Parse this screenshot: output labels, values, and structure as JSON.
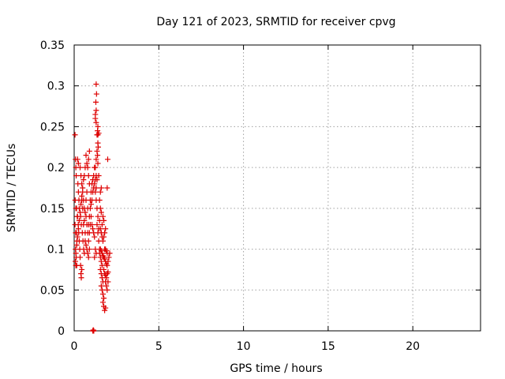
{
  "chart_data": {
    "type": "scatter",
    "title": "Day 121 of 2023, SRMTID for receiver cpvg",
    "xlabel": "GPS time / hours",
    "ylabel": "SRMTID / TECUs",
    "xlim": [
      0,
      24
    ],
    "ylim": [
      0,
      0.35
    ],
    "xticks": [
      0,
      5,
      10,
      15,
      20
    ],
    "xtick_labels": [
      "0",
      "5",
      "10",
      "15",
      "20"
    ],
    "yticks": [
      0,
      0.05,
      0.1,
      0.15,
      0.2,
      0.25,
      0.3,
      0.35
    ],
    "ytick_labels": [
      "0",
      "0.05",
      "0.1",
      "0.15",
      "0.2",
      "0.25",
      "0.3",
      "0.35"
    ],
    "grid": true,
    "marker": "+",
    "color": "#dd0000",
    "series": [
      {
        "name": "SRMTID",
        "points": [
          [
            0.05,
            0.24
          ],
          [
            0.08,
            0.21
          ],
          [
            0.1,
            0.2
          ],
          [
            0.12,
            0.19
          ],
          [
            0.06,
            0.16
          ],
          [
            0.1,
            0.15
          ],
          [
            0.14,
            0.15
          ],
          [
            0.18,
            0.14
          ],
          [
            0.05,
            0.13
          ],
          [
            0.09,
            0.12
          ],
          [
            0.13,
            0.12
          ],
          [
            0.16,
            0.11
          ],
          [
            0.08,
            0.1
          ],
          [
            0.12,
            0.09
          ],
          [
            0.15,
            0.08
          ],
          [
            0.1,
            0.08
          ],
          [
            0.2,
            0.21
          ],
          [
            0.22,
            0.18
          ],
          [
            0.25,
            0.17
          ],
          [
            0.28,
            0.16
          ],
          [
            0.3,
            0.15
          ],
          [
            0.2,
            0.14
          ],
          [
            0.24,
            0.13
          ],
          [
            0.27,
            0.12
          ],
          [
            0.3,
            0.11
          ],
          [
            0.33,
            0.1
          ],
          [
            0.35,
            0.09
          ],
          [
            0.38,
            0.08
          ],
          [
            0.4,
            0.07
          ],
          [
            0.42,
            0.065
          ],
          [
            0.45,
            0.075
          ],
          [
            0.25,
            0.205
          ],
          [
            0.35,
            0.2
          ],
          [
            0.4,
            0.19
          ],
          [
            0.45,
            0.18
          ],
          [
            0.5,
            0.17
          ],
          [
            0.55,
            0.16
          ],
          [
            0.6,
            0.15
          ],
          [
            0.38,
            0.14
          ],
          [
            0.42,
            0.13
          ],
          [
            0.48,
            0.12
          ],
          [
            0.52,
            0.11
          ],
          [
            0.56,
            0.1
          ],
          [
            0.6,
            0.095
          ],
          [
            0.65,
            0.12
          ],
          [
            0.7,
            0.14
          ],
          [
            0.5,
            0.15
          ],
          [
            0.45,
            0.16
          ],
          [
            0.55,
            0.13
          ],
          [
            0.6,
            0.135
          ],
          [
            0.65,
            0.145
          ],
          [
            0.7,
            0.16
          ],
          [
            0.75,
            0.17
          ],
          [
            0.8,
            0.15
          ],
          [
            0.75,
            0.13
          ],
          [
            0.8,
            0.12
          ],
          [
            0.85,
            0.11
          ],
          [
            0.9,
            0.1
          ],
          [
            0.85,
            0.09
          ],
          [
            0.9,
            0.12
          ],
          [
            0.95,
            0.13
          ],
          [
            1.0,
            0.14
          ],
          [
            0.95,
            0.16
          ],
          [
            1.0,
            0.17
          ],
          [
            0.9,
            0.18
          ],
          [
            0.85,
            0.19
          ],
          [
            0.8,
            0.2
          ],
          [
            0.85,
            0.21
          ],
          [
            0.9,
            0.22
          ],
          [
            0.7,
            0.215
          ],
          [
            0.75,
            0.205
          ],
          [
            0.65,
            0.2
          ],
          [
            0.6,
            0.19
          ],
          [
            0.55,
            0.185
          ],
          [
            0.5,
            0.175
          ],
          [
            0.45,
            0.165
          ],
          [
            0.4,
            0.155
          ],
          [
            0.35,
            0.145
          ],
          [
            0.3,
            0.135
          ],
          [
            0.25,
            0.125
          ],
          [
            0.2,
            0.115
          ],
          [
            0.15,
            0.105
          ],
          [
            0.1,
            0.095
          ],
          [
            0.07,
            0.085
          ],
          [
            0.65,
            0.11
          ],
          [
            0.7,
            0.105
          ],
          [
            0.75,
            0.1
          ],
          [
            0.8,
            0.095
          ],
          [
            0.85,
            0.13
          ],
          [
            0.9,
            0.14
          ],
          [
            0.95,
            0.15
          ],
          [
            1.0,
            0.155
          ],
          [
            1.05,
            0.13
          ],
          [
            1.1,
            0.125
          ],
          [
            1.15,
            0.12
          ],
          [
            1.2,
            0.115
          ],
          [
            1.05,
            0.16
          ],
          [
            1.1,
            0.17
          ],
          [
            1.15,
            0.175
          ],
          [
            1.2,
            0.18
          ],
          [
            1.25,
            0.185
          ],
          [
            1.3,
            0.19
          ],
          [
            1.25,
            0.2
          ],
          [
            1.3,
            0.21
          ],
          [
            1.35,
            0.22
          ],
          [
            1.4,
            0.23
          ],
          [
            1.35,
            0.24
          ],
          [
            1.38,
            0.245
          ],
          [
            1.4,
            0.25
          ],
          [
            1.25,
            0.26
          ],
          [
            1.3,
            0.27
          ],
          [
            1.28,
            0.28
          ],
          [
            1.32,
            0.29
          ],
          [
            1.3,
            0.302
          ],
          [
            1.25,
            0.265
          ],
          [
            1.3,
            0.255
          ],
          [
            1.2,
            0.2
          ],
          [
            1.15,
            0.19
          ],
          [
            1.1,
            0.185
          ],
          [
            1.05,
            0.18
          ],
          [
            1.25,
            0.17
          ],
          [
            1.3,
            0.16
          ],
          [
            1.35,
            0.15
          ],
          [
            1.4,
            0.14
          ],
          [
            1.35,
            0.13
          ],
          [
            1.4,
            0.12
          ],
          [
            1.45,
            0.11
          ],
          [
            1.5,
            0.1
          ],
          [
            1.25,
            0.1
          ],
          [
            1.3,
            0.095
          ],
          [
            1.2,
            0.09
          ],
          [
            1.45,
            0.125
          ],
          [
            1.5,
            0.135
          ],
          [
            1.55,
            0.125
          ],
          [
            1.6,
            0.12
          ],
          [
            1.65,
            0.115
          ],
          [
            1.5,
            0.095
          ],
          [
            1.55,
            0.09
          ],
          [
            1.6,
            0.085
          ],
          [
            1.65,
            0.08
          ],
          [
            1.55,
            0.075
          ],
          [
            1.6,
            0.07
          ],
          [
            1.65,
            0.065
          ],
          [
            1.7,
            0.06
          ],
          [
            1.6,
            0.055
          ],
          [
            1.65,
            0.05
          ],
          [
            1.7,
            0.045
          ],
          [
            1.75,
            0.04
          ],
          [
            1.7,
            0.035
          ],
          [
            1.75,
            0.03
          ],
          [
            1.8,
            0.025
          ],
          [
            1.85,
            0.028
          ],
          [
            1.55,
            0.1
          ],
          [
            1.6,
            0.098
          ],
          [
            1.65,
            0.095
          ],
          [
            1.7,
            0.092
          ],
          [
            1.75,
            0.09
          ],
          [
            1.8,
            0.088
          ],
          [
            1.85,
            0.085
          ],
          [
            1.9,
            0.082
          ],
          [
            1.95,
            0.08
          ],
          [
            2.0,
            0.085
          ],
          [
            2.05,
            0.09
          ],
          [
            2.1,
            0.095
          ],
          [
            1.8,
            0.1
          ],
          [
            1.85,
            0.1
          ],
          [
            1.9,
            0.098
          ],
          [
            1.95,
            0.095
          ],
          [
            1.75,
            0.075
          ],
          [
            1.8,
            0.07
          ],
          [
            1.85,
            0.068
          ],
          [
            1.9,
            0.065
          ],
          [
            1.95,
            0.07
          ],
          [
            2.0,
            0.072
          ],
          [
            1.85,
            0.06
          ],
          [
            1.9,
            0.055
          ],
          [
            1.95,
            0.05
          ],
          [
            2.0,
            0.06
          ],
          [
            1.7,
            0.11
          ],
          [
            1.75,
            0.115
          ],
          [
            1.8,
            0.12
          ],
          [
            1.85,
            0.125
          ],
          [
            1.65,
            0.13
          ],
          [
            1.7,
            0.14
          ],
          [
            1.75,
            0.135
          ],
          [
            1.6,
            0.145
          ],
          [
            1.55,
            0.15
          ],
          [
            1.5,
            0.16
          ],
          [
            1.55,
            0.17
          ],
          [
            1.6,
            0.175
          ],
          [
            1.95,
            0.175
          ],
          [
            1.98,
            0.21
          ],
          [
            1.45,
            0.19
          ],
          [
            1.4,
            0.205
          ],
          [
            1.38,
            0.215
          ],
          [
            1.42,
            0.225
          ],
          [
            1.45,
            0.242
          ],
          [
            1.4,
            0.24
          ],
          [
            1.35,
            0.185
          ],
          [
            1.3,
            0.175
          ],
          [
            1.1,
            0.0
          ],
          [
            1.12,
            0.0
          ],
          [
            1.14,
            0.0
          ],
          [
            1.16,
            0.0
          ],
          [
            1.13,
            0.001
          ]
        ]
      }
    ]
  }
}
